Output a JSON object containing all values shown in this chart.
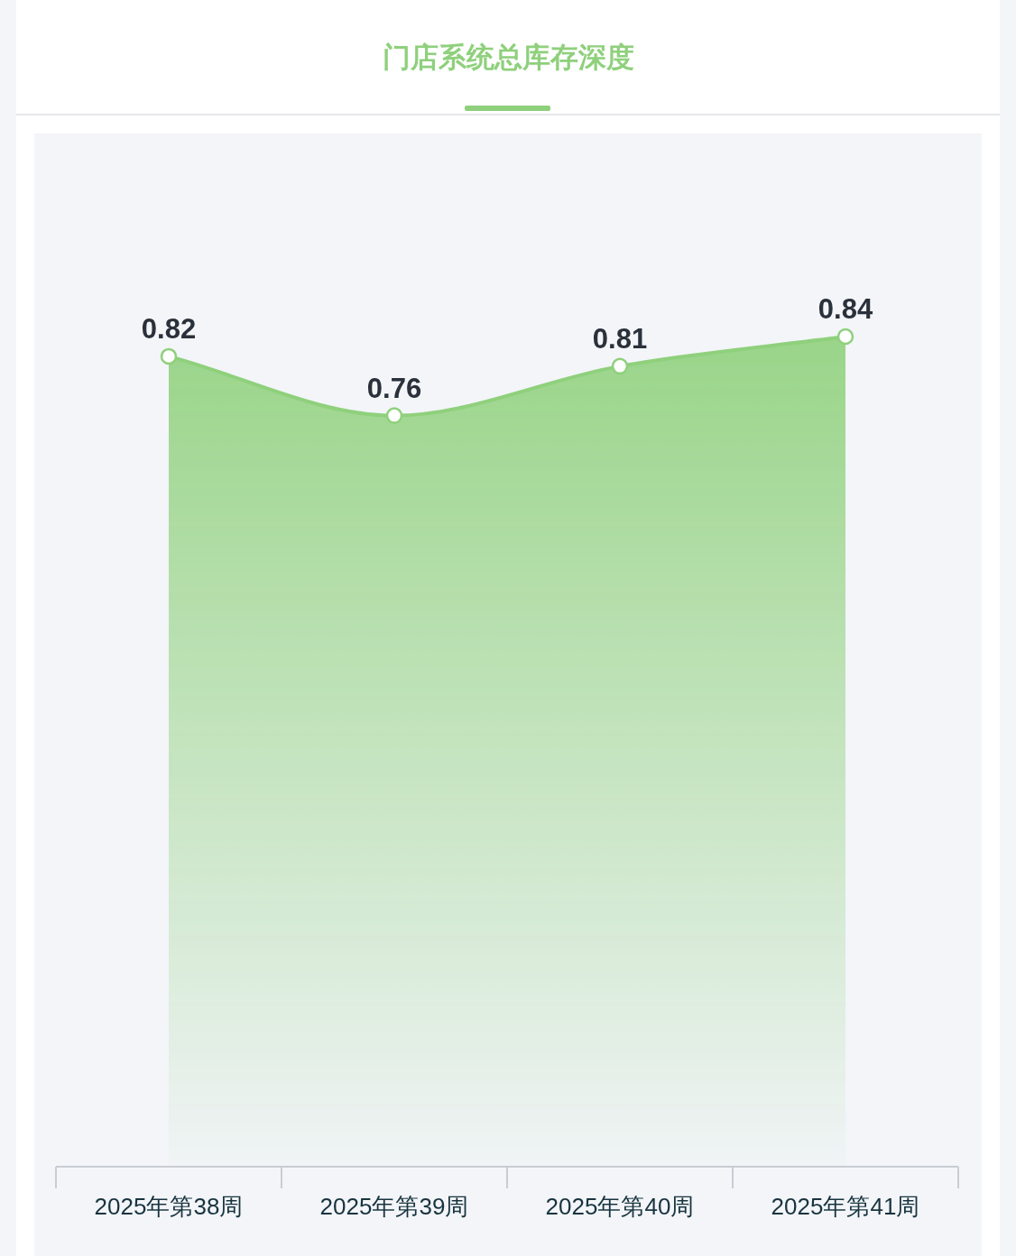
{
  "chart_data": {
    "type": "area",
    "title": "门店系统总库存深度",
    "categories": [
      "2025年第38周",
      "2025年第39周",
      "2025年第40周",
      "2025年第41周"
    ],
    "values": [
      0.82,
      0.76,
      0.81,
      0.84
    ],
    "color": "#8fd07c",
    "data_labels": true,
    "marker": "circle"
  }
}
